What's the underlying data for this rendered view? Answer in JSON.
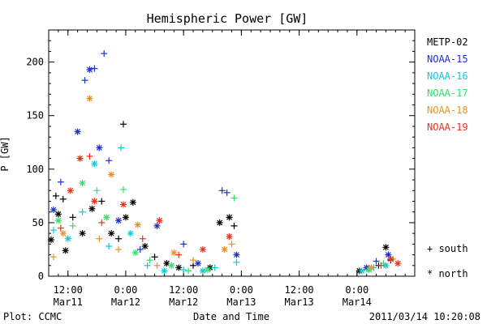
{
  "chart_data": {
    "type": "scatter",
    "title": "Hemispheric Power [GW]",
    "xlabel": "Date and Time",
    "ylabel": "P [GW]",
    "ylim": [
      0,
      230
    ],
    "xlim": [
      "2011-03-11T08:00",
      "2011-03-14T12:00"
    ],
    "y_ticks": [
      0,
      50,
      100,
      150,
      200
    ],
    "x_ticks": [
      {
        "time": "2011-03-11T12:00",
        "line1": "12:00",
        "line2": "Mar11"
      },
      {
        "time": "2011-03-12T00:00",
        "line1": "0:00",
        "line2": "Mar12"
      },
      {
        "time": "2011-03-12T12:00",
        "line1": "12:00",
        "line2": "Mar12"
      },
      {
        "time": "2011-03-13T00:00",
        "line1": "0:00",
        "line2": "Mar13"
      },
      {
        "time": "2011-03-13T12:00",
        "line1": "12:00",
        "line2": "Mar13"
      },
      {
        "time": "2011-03-14T00:00",
        "line1": "0:00",
        "line2": "Mar14"
      }
    ],
    "grid": false,
    "legend_position": "right",
    "markers": {
      "south": "+",
      "north": "*"
    },
    "marker_legend": [
      {
        "symbol": "+",
        "label": "south"
      },
      {
        "symbol": "*",
        "label": "north"
      }
    ],
    "series": [
      {
        "name": "METP-02",
        "color": "#000000",
        "points": [
          {
            "t": "2011-03-11T08:30",
            "y": 34,
            "m": "*"
          },
          {
            "t": "2011-03-11T09:30",
            "y": 75,
            "m": "+"
          },
          {
            "t": "2011-03-11T10:00",
            "y": 58,
            "m": "*"
          },
          {
            "t": "2011-03-11T11:00",
            "y": 72,
            "m": "+"
          },
          {
            "t": "2011-03-11T11:30",
            "y": 24,
            "m": "*"
          },
          {
            "t": "2011-03-11T13:00",
            "y": 55,
            "m": "+"
          },
          {
            "t": "2011-03-11T15:00",
            "y": 40,
            "m": "*"
          },
          {
            "t": "2011-03-11T17:00",
            "y": 63,
            "m": "*"
          },
          {
            "t": "2011-03-11T19:00",
            "y": 70,
            "m": "+"
          },
          {
            "t": "2011-03-11T21:00",
            "y": 40,
            "m": "*"
          },
          {
            "t": "2011-03-11T22:30",
            "y": 35,
            "m": "+"
          },
          {
            "t": "2011-03-11T23:30",
            "y": 142,
            "m": "+"
          },
          {
            "t": "2011-03-12T00:00",
            "y": 55,
            "m": "*"
          },
          {
            "t": "2011-03-12T01:30",
            "y": 69,
            "m": "*"
          },
          {
            "t": "2011-03-12T04:00",
            "y": 28,
            "m": "*"
          },
          {
            "t": "2011-03-12T06:00",
            "y": 18,
            "m": "+"
          },
          {
            "t": "2011-03-12T08:30",
            "y": 12,
            "m": "*"
          },
          {
            "t": "2011-03-12T11:00",
            "y": 8,
            "m": "*"
          },
          {
            "t": "2011-03-12T14:00",
            "y": 10,
            "m": "+"
          },
          {
            "t": "2011-03-12T17:30",
            "y": 8,
            "m": "*"
          },
          {
            "t": "2011-03-12T19:30",
            "y": 50,
            "m": "*"
          },
          {
            "t": "2011-03-12T21:30",
            "y": 55,
            "m": "*"
          },
          {
            "t": "2011-03-12T22:30",
            "y": 47,
            "m": "+"
          },
          {
            "t": "2011-03-14T00:30",
            "y": 5,
            "m": "*"
          },
          {
            "t": "2011-03-14T04:30",
            "y": 10,
            "m": "+"
          },
          {
            "t": "2011-03-14T06:00",
            "y": 27,
            "m": "*"
          },
          {
            "t": "2011-03-14T07:00",
            "y": 15,
            "m": "+"
          }
        ]
      },
      {
        "name": "NOAA-15",
        "color": "#1f2fc9",
        "points": [
          {
            "t": "2011-03-11T09:00",
            "y": 62,
            "m": "*"
          },
          {
            "t": "2011-03-11T10:30",
            "y": 88,
            "m": "+"
          },
          {
            "t": "2011-03-11T14:00",
            "y": 135,
            "m": "*"
          },
          {
            "t": "2011-03-11T15:30",
            "y": 183,
            "m": "+"
          },
          {
            "t": "2011-03-11T16:30",
            "y": 193,
            "m": "*"
          },
          {
            "t": "2011-03-11T17:30",
            "y": 194,
            "m": "+"
          },
          {
            "t": "2011-03-11T19:30",
            "y": 208,
            "m": "+"
          },
          {
            "t": "2011-03-11T18:30",
            "y": 120,
            "m": "*"
          },
          {
            "t": "2011-03-11T20:30",
            "y": 108,
            "m": "+"
          },
          {
            "t": "2011-03-11T22:30",
            "y": 52,
            "m": "*"
          },
          {
            "t": "2011-03-12T03:00",
            "y": 25,
            "m": "+"
          },
          {
            "t": "2011-03-12T06:30",
            "y": 47,
            "m": "*"
          },
          {
            "t": "2011-03-12T12:00",
            "y": 30,
            "m": "+"
          },
          {
            "t": "2011-03-12T15:00",
            "y": 12,
            "m": "*"
          },
          {
            "t": "2011-03-12T20:00",
            "y": 80,
            "m": "+"
          },
          {
            "t": "2011-03-12T21:00",
            "y": 78,
            "m": "+"
          },
          {
            "t": "2011-03-12T23:00",
            "y": 20,
            "m": "*"
          },
          {
            "t": "2011-03-14T02:00",
            "y": 8,
            "m": "*"
          },
          {
            "t": "2011-03-14T04:00",
            "y": 14,
            "m": "+"
          },
          {
            "t": "2011-03-14T06:30",
            "y": 20,
            "m": "*"
          }
        ]
      },
      {
        "name": "NOAA-16",
        "color": "#14c8dc",
        "points": [
          {
            "t": "2011-03-11T09:00",
            "y": 43,
            "m": "+"
          },
          {
            "t": "2011-03-11T12:00",
            "y": 35,
            "m": "*"
          },
          {
            "t": "2011-03-11T15:00",
            "y": 60,
            "m": "+"
          },
          {
            "t": "2011-03-11T17:30",
            "y": 105,
            "m": "*"
          },
          {
            "t": "2011-03-11T20:30",
            "y": 28,
            "m": "+"
          },
          {
            "t": "2011-03-11T23:00",
            "y": 120,
            "m": "+"
          },
          {
            "t": "2011-03-12T01:00",
            "y": 40,
            "m": "*"
          },
          {
            "t": "2011-03-12T04:30",
            "y": 10,
            "m": "+"
          },
          {
            "t": "2011-03-12T08:00",
            "y": 5,
            "m": "*"
          },
          {
            "t": "2011-03-12T12:00",
            "y": 6,
            "m": "+"
          },
          {
            "t": "2011-03-12T16:00",
            "y": 5,
            "m": "*"
          },
          {
            "t": "2011-03-12T18:30",
            "y": 8,
            "m": "+"
          },
          {
            "t": "2011-03-12T23:00",
            "y": 13,
            "m": "+"
          },
          {
            "t": "2011-03-14T01:00",
            "y": 5,
            "m": "*"
          },
          {
            "t": "2011-03-14T03:30",
            "y": 8,
            "m": "+"
          },
          {
            "t": "2011-03-14T06:00",
            "y": 10,
            "m": "*"
          }
        ]
      },
      {
        "name": "NOAA-17",
        "color": "#33e06a",
        "points": [
          {
            "t": "2011-03-11T10:00",
            "y": 52,
            "m": "*"
          },
          {
            "t": "2011-03-11T13:00",
            "y": 47,
            "m": "+"
          },
          {
            "t": "2011-03-11T15:00",
            "y": 87,
            "m": "*"
          },
          {
            "t": "2011-03-11T18:00",
            "y": 80,
            "m": "+"
          },
          {
            "t": "2011-03-11T20:00",
            "y": 55,
            "m": "*"
          },
          {
            "t": "2011-03-11T23:30",
            "y": 81,
            "m": "+"
          },
          {
            "t": "2011-03-12T02:00",
            "y": 22,
            "m": "*"
          },
          {
            "t": "2011-03-12T05:00",
            "y": 15,
            "m": "+"
          },
          {
            "t": "2011-03-12T09:30",
            "y": 10,
            "m": "*"
          },
          {
            "t": "2011-03-12T13:00",
            "y": 5,
            "m": "+"
          },
          {
            "t": "2011-03-12T17:00",
            "y": 6,
            "m": "*"
          },
          {
            "t": "2011-03-12T22:30",
            "y": 73,
            "m": "+"
          },
          {
            "t": "2011-03-14T02:30",
            "y": 6,
            "m": "*"
          },
          {
            "t": "2011-03-14T05:30",
            "y": 12,
            "m": "+"
          }
        ]
      },
      {
        "name": "NOAA-18",
        "color": "#e8922a",
        "points": [
          {
            "t": "2011-03-11T09:00",
            "y": 18,
            "m": "+"
          },
          {
            "t": "2011-03-11T11:00",
            "y": 40,
            "m": "*"
          },
          {
            "t": "2011-03-11T16:30",
            "y": 166,
            "m": "*"
          },
          {
            "t": "2011-03-11T18:30",
            "y": 35,
            "m": "+"
          },
          {
            "t": "2011-03-11T21:00",
            "y": 95,
            "m": "*"
          },
          {
            "t": "2011-03-11T22:30",
            "y": 25,
            "m": "+"
          },
          {
            "t": "2011-03-12T02:30",
            "y": 48,
            "m": "*"
          },
          {
            "t": "2011-03-12T06:30",
            "y": 10,
            "m": "+"
          },
          {
            "t": "2011-03-12T10:00",
            "y": 22,
            "m": "*"
          },
          {
            "t": "2011-03-12T14:00",
            "y": 15,
            "m": "+"
          },
          {
            "t": "2011-03-12T20:30",
            "y": 25,
            "m": "*"
          },
          {
            "t": "2011-03-12T22:00",
            "y": 30,
            "m": "+"
          },
          {
            "t": "2011-03-14T03:00",
            "y": 8,
            "m": "*"
          },
          {
            "t": "2011-03-14T07:30",
            "y": 16,
            "m": "+"
          }
        ]
      },
      {
        "name": "NOAA-19",
        "color": "#e8321e",
        "points": [
          {
            "t": "2011-03-11T10:30",
            "y": 45,
            "m": "+"
          },
          {
            "t": "2011-03-11T12:30",
            "y": 80,
            "m": "*"
          },
          {
            "t": "2011-03-11T14:30",
            "y": 110,
            "m": "*"
          },
          {
            "t": "2011-03-11T16:30",
            "y": 112,
            "m": "+"
          },
          {
            "t": "2011-03-11T17:30",
            "y": 70,
            "m": "*"
          },
          {
            "t": "2011-03-11T19:00",
            "y": 50,
            "m": "+"
          },
          {
            "t": "2011-03-11T23:30",
            "y": 67,
            "m": "*"
          },
          {
            "t": "2011-03-12T03:30",
            "y": 35,
            "m": "+"
          },
          {
            "t": "2011-03-12T07:00",
            "y": 52,
            "m": "*"
          },
          {
            "t": "2011-03-12T11:00",
            "y": 20,
            "m": "+"
          },
          {
            "t": "2011-03-12T16:00",
            "y": 25,
            "m": "*"
          },
          {
            "t": "2011-03-12T21:30",
            "y": 37,
            "m": "*"
          },
          {
            "t": "2011-03-14T05:00",
            "y": 10,
            "m": "+"
          },
          {
            "t": "2011-03-14T07:00",
            "y": 16,
            "m": "*"
          },
          {
            "t": "2011-03-14T08:30",
            "y": 12,
            "m": "*"
          }
        ]
      }
    ]
  },
  "footer": {
    "left": "Plot: CCMC",
    "right": "2011/03/14 10:20:08"
  }
}
